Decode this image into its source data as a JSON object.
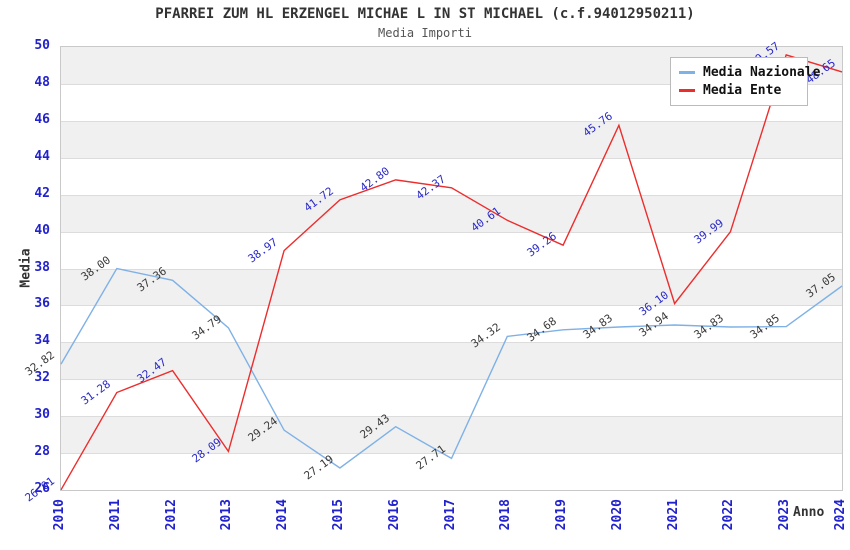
{
  "chart_data": {
    "type": "line",
    "title": "PFARREI ZUM HL ERZENGEL MICHAE L IN ST MICHAEL (c.f.94012950211)",
    "subtitle": "Media Importi",
    "xlabel": "Anno",
    "ylabel": "Media",
    "x": [
      2010,
      2011,
      2012,
      2013,
      2014,
      2015,
      2016,
      2017,
      2018,
      2019,
      2020,
      2021,
      2022,
      2023,
      2024
    ],
    "ylim": [
      26,
      50
    ],
    "ytick_step": 2,
    "grid": "horizontal-bands",
    "legend_position": "top-right",
    "series": [
      {
        "name": "Media Nazionale",
        "color": "#7fb1e6",
        "label_color": "#3a3a3a",
        "values": [
          32.82,
          38.0,
          37.36,
          34.79,
          29.24,
          27.19,
          29.43,
          27.71,
          34.32,
          34.68,
          34.83,
          34.94,
          34.83,
          34.85,
          37.05
        ]
      },
      {
        "name": "Media Ente",
        "color": "#ec2d2d",
        "label_color": "#2a2ac8",
        "values": [
          26.01,
          31.28,
          32.47,
          28.09,
          38.97,
          41.72,
          42.8,
          42.37,
          40.61,
          39.26,
          45.76,
          36.1,
          39.99,
          49.57,
          48.65
        ]
      }
    ],
    "colors": {
      "tick_label": "#2222cc",
      "axis_title": "#333333",
      "band_gray": "#f0f0f0",
      "plot_border": "#c9c9c9"
    }
  }
}
